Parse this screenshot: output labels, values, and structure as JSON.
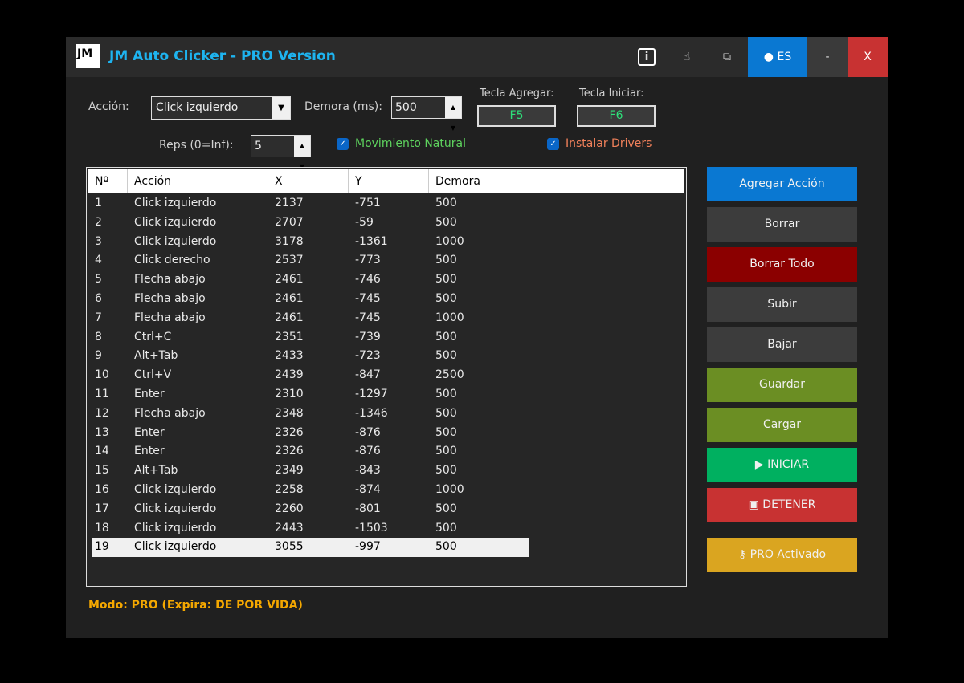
{
  "window": {
    "title": "JM Auto Clicker - PRO Version",
    "logo": "JM",
    "lang_button": "ES",
    "minimize": "-",
    "close": "X",
    "icons": [
      "info-icon",
      "hand-icon",
      "screenshot-icon",
      "globe-icon"
    ]
  },
  "controls": {
    "action_label": "Acción:",
    "action_value": "Click izquierdo",
    "delay_label": "Demora (ms):",
    "delay_value": "500",
    "reps_label": "Reps (0=Inf):",
    "reps_value": "5",
    "key_add_label": "Tecla Agregar:",
    "key_add_value": "F5",
    "key_start_label": "Tecla Iniciar:",
    "key_start_value": "F6",
    "natural_label": "Movimiento Natural",
    "natural_checked": true,
    "drivers_label": "Instalar Drivers",
    "drivers_checked": true
  },
  "table": {
    "columns": [
      "Nº",
      "Acción",
      "X",
      "Y",
      "Demora"
    ],
    "selected_row": 19,
    "rows": [
      [
        "1",
        "Click izquierdo",
        "2137",
        "-751",
        "500"
      ],
      [
        "2",
        "Click izquierdo",
        "2707",
        "-59",
        "500"
      ],
      [
        "3",
        "Click izquierdo",
        "3178",
        "-1361",
        "1000"
      ],
      [
        "4",
        "Click derecho",
        "2537",
        "-773",
        "500"
      ],
      [
        "5",
        "Flecha abajo",
        "2461",
        "-746",
        "500"
      ],
      [
        "6",
        "Flecha abajo",
        "2461",
        "-745",
        "500"
      ],
      [
        "7",
        "Flecha abajo",
        "2461",
        "-745",
        "1000"
      ],
      [
        "8",
        "Ctrl+C",
        "2351",
        "-739",
        "500"
      ],
      [
        "9",
        "Alt+Tab",
        "2433",
        "-723",
        "500"
      ],
      [
        "10",
        "Ctrl+V",
        "2439",
        "-847",
        "2500"
      ],
      [
        "11",
        "Enter",
        "2310",
        "-1297",
        "500"
      ],
      [
        "12",
        "Flecha abajo",
        "2348",
        "-1346",
        "500"
      ],
      [
        "13",
        "Enter",
        "2326",
        "-876",
        "500"
      ],
      [
        "14",
        "Enter",
        "2326",
        "-876",
        "500"
      ],
      [
        "15",
        "Alt+Tab",
        "2349",
        "-843",
        "500"
      ],
      [
        "16",
        "Click izquierdo",
        "2258",
        "-874",
        "1000"
      ],
      [
        "17",
        "Click izquierdo",
        "2260",
        "-801",
        "500"
      ],
      [
        "18",
        "Click izquierdo",
        "2443",
        "-1503",
        "500"
      ],
      [
        "19",
        "Click izquierdo",
        "3055",
        "-997",
        "500"
      ]
    ]
  },
  "buttons": [
    {
      "label": "Agregar Acción",
      "color": "#0a78d2"
    },
    {
      "label": "Borrar",
      "color": "#3c3c3c"
    },
    {
      "label": "Borrar Todo",
      "color": "#8b0000"
    },
    {
      "label": "Subir",
      "color": "#3c3c3c"
    },
    {
      "label": "Bajar",
      "color": "#3c3c3c"
    },
    {
      "label": "Guardar",
      "color": "#6b8e23"
    },
    {
      "label": "Cargar",
      "color": "#6b8e23"
    },
    {
      "label": "▶ INICIAR",
      "color": "#00b060"
    },
    {
      "label": "▣ DETENER",
      "color": "#c83232"
    },
    {
      "label": "⚷ PRO Activado",
      "color": "#daa520"
    }
  ],
  "status": "Modo: PRO (Expira: DE POR VIDA)"
}
